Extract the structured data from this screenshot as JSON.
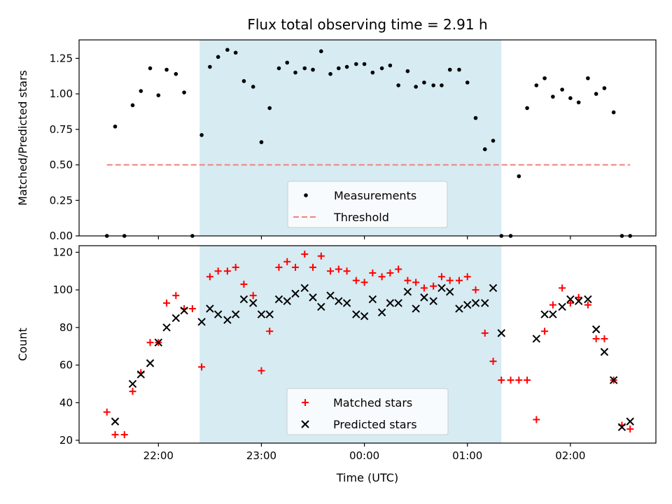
{
  "title": "Flux total observing time = 2.91 h",
  "chart_data": [
    {
      "type": "scatter",
      "panel": "top",
      "ylabel": "Matched/Predicted stars",
      "xlabel": "",
      "ylim": [
        0,
        1.38
      ],
      "yticks": [
        0.0,
        0.25,
        0.5,
        0.75,
        1.0,
        1.25
      ],
      "ytick_labels": [
        "0.00",
        "0.25",
        "0.50",
        "0.75",
        "1.00",
        "1.25"
      ],
      "xlim": [
        21.23,
        26.83
      ],
      "shaded_region": [
        22.4,
        25.33
      ],
      "legend_position": "lower-center",
      "series": [
        {
          "name": "Measurements",
          "marker": "dot",
          "color": "#000000",
          "x": [
            21.5,
            21.58,
            21.67,
            21.75,
            21.83,
            21.92,
            22.0,
            22.08,
            22.17,
            22.25,
            22.33,
            22.42,
            22.5,
            22.58,
            22.67,
            22.75,
            22.83,
            22.92,
            23.0,
            23.08,
            23.17,
            23.25,
            23.33,
            23.42,
            23.5,
            23.58,
            23.67,
            23.75,
            23.83,
            23.92,
            24.0,
            24.08,
            24.17,
            24.25,
            24.33,
            24.42,
            24.5,
            24.58,
            24.67,
            24.75,
            24.83,
            24.92,
            25.0,
            25.08,
            25.17,
            25.25,
            25.33,
            25.42,
            25.5,
            25.58,
            25.67,
            25.75,
            25.83,
            25.92,
            26.0,
            26.08,
            26.17,
            26.25,
            26.33,
            26.42,
            26.5,
            26.58
          ],
          "y": [
            0.0,
            0.77,
            0.0,
            0.92,
            1.02,
            1.18,
            0.99,
            1.17,
            1.14,
            1.01,
            0.0,
            0.71,
            1.19,
            1.26,
            1.31,
            1.29,
            1.09,
            1.05,
            0.66,
            0.9,
            1.18,
            1.22,
            1.15,
            1.18,
            1.17,
            1.3,
            1.14,
            1.18,
            1.19,
            1.21,
            1.21,
            1.15,
            1.18,
            1.2,
            1.06,
            1.16,
            1.05,
            1.08,
            1.06,
            1.06,
            1.17,
            1.17,
            1.08,
            0.83,
            0.61,
            0.67,
            0.0,
            0.0,
            0.42,
            0.9,
            1.06,
            1.11,
            0.98,
            1.03,
            0.97,
            0.94,
            1.11,
            1.0,
            1.04,
            0.87,
            0.0,
            0.0
          ]
        },
        {
          "name": "Threshold",
          "marker": "dashed-line",
          "color": "#f08080",
          "x": [
            21.5,
            26.58
          ],
          "y": [
            0.5,
            0.5
          ]
        }
      ]
    },
    {
      "type": "scatter",
      "panel": "bottom",
      "ylabel": "Count",
      "xlabel": "Time (UTC)",
      "ylim": [
        18.5,
        123.5
      ],
      "yticks": [
        20,
        40,
        60,
        80,
        100,
        120
      ],
      "ytick_labels": [
        "20",
        "40",
        "60",
        "80",
        "100",
        "120"
      ],
      "xlim": [
        21.23,
        26.83
      ],
      "xticks": [
        22.0,
        23.0,
        24.0,
        25.0,
        26.0
      ],
      "xtick_labels": [
        "22:00",
        "23:00",
        "00:00",
        "01:00",
        "02:00"
      ],
      "shaded_region": [
        22.4,
        25.33
      ],
      "legend_position": "lower-center",
      "series": [
        {
          "name": "Matched stars",
          "marker": "plus",
          "color": "#ff0000",
          "x": [
            21.5,
            21.58,
            21.67,
            21.75,
            21.83,
            21.92,
            22.0,
            22.08,
            22.17,
            22.25,
            22.33,
            22.42,
            22.5,
            22.58,
            22.67,
            22.75,
            22.83,
            22.92,
            23.0,
            23.08,
            23.17,
            23.25,
            23.33,
            23.42,
            23.5,
            23.58,
            23.67,
            23.75,
            23.83,
            23.92,
            24.0,
            24.08,
            24.17,
            24.25,
            24.33,
            24.42,
            24.5,
            24.58,
            24.67,
            24.75,
            24.83,
            24.92,
            25.0,
            25.08,
            25.17,
            25.25,
            25.33,
            25.42,
            25.5,
            25.58,
            25.67,
            25.75,
            25.83,
            25.92,
            26.0,
            26.08,
            26.17,
            26.25,
            26.33,
            26.42,
            26.5,
            26.58
          ],
          "y": [
            35,
            23,
            23,
            46,
            56,
            72,
            72,
            93,
            97,
            90,
            90,
            59,
            107,
            110,
            110,
            112,
            103,
            97,
            57,
            78,
            112,
            115,
            112,
            119,
            112,
            118,
            110,
            111,
            110,
            105,
            104,
            109,
            107,
            109,
            111,
            105,
            104,
            101,
            102,
            107,
            105,
            105,
            107,
            100,
            77,
            62,
            52,
            52,
            52,
            52,
            31,
            78,
            92,
            101,
            93,
            96,
            92,
            74,
            74,
            52,
            28,
            26
          ]
        },
        {
          "name": "Predicted stars",
          "marker": "cross",
          "color": "#000000",
          "x": [
            21.58,
            21.75,
            21.83,
            21.92,
            22.0,
            22.08,
            22.17,
            22.25,
            22.42,
            22.5,
            22.58,
            22.67,
            22.75,
            22.83,
            22.92,
            23.0,
            23.08,
            23.17,
            23.25,
            23.33,
            23.42,
            23.5,
            23.58,
            23.67,
            23.75,
            23.83,
            23.92,
            24.0,
            24.08,
            24.17,
            24.25,
            24.33,
            24.42,
            24.5,
            24.58,
            24.67,
            24.75,
            24.83,
            24.92,
            25.0,
            25.08,
            25.17,
            25.25,
            25.33,
            25.67,
            25.75,
            25.83,
            25.92,
            26.0,
            26.08,
            26.17,
            26.25,
            26.33,
            26.42,
            26.5,
            26.58
          ],
          "y": [
            30,
            50,
            55,
            61,
            72,
            80,
            85,
            89,
            83,
            90,
            87,
            84,
            87,
            95,
            93,
            87,
            87,
            95,
            94,
            98,
            101,
            96,
            91,
            97,
            94,
            93,
            87,
            86,
            95,
            88,
            93,
            93,
            99,
            90,
            96,
            94,
            101,
            99,
            90,
            92,
            93,
            93,
            101,
            77,
            74,
            87,
            87,
            91,
            95,
            94,
            95,
            79,
            67,
            52,
            27,
            30
          ]
        }
      ]
    }
  ]
}
